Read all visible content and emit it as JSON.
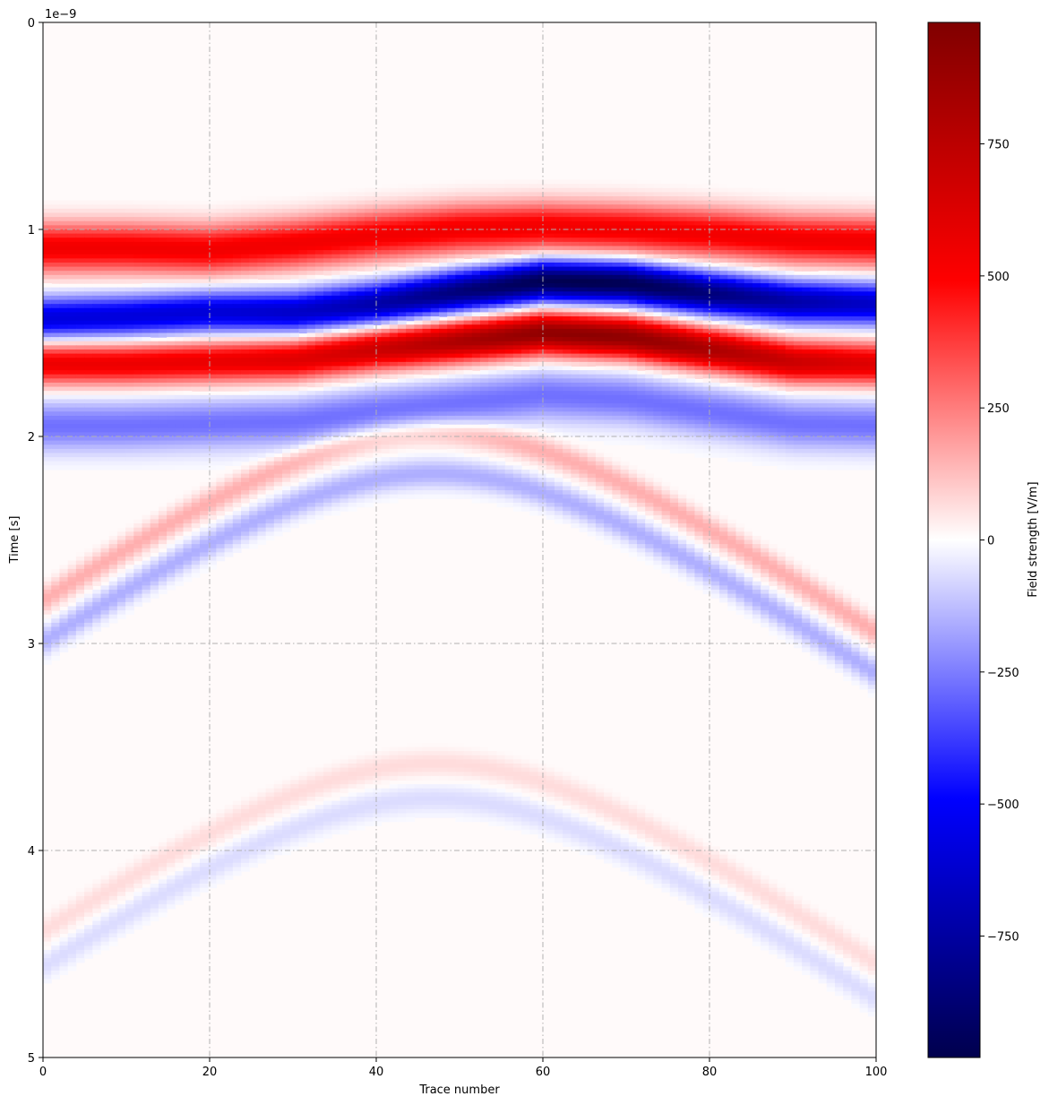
{
  "chart_data": {
    "type": "heatmap",
    "xlabel": "Trace number",
    "ylabel": "Time [s]",
    "y_offset_label": "1e−9",
    "xlim": [
      0,
      100
    ],
    "ylim": [
      0,
      5
    ],
    "y_inverted": true,
    "x_ticks": [
      "0",
      "20",
      "40",
      "60",
      "80",
      "100"
    ],
    "y_ticks": [
      "0",
      "1",
      "2",
      "3",
      "4",
      "5"
    ],
    "grid": true,
    "grid_style": "dash-dot",
    "colormap": "seismic",
    "colorbar": {
      "label": "Field strength [V/m]",
      "range": [
        -980,
        980
      ],
      "ticks": [
        "−750",
        "−500",
        "−250",
        "0",
        "250",
        "500",
        "750"
      ],
      "tick_values": [
        -750,
        -500,
        -250,
        0,
        250,
        500,
        750
      ]
    },
    "direct_wave": {
      "first_red_band_center_time": [
        1.09,
        1.09,
        1.1,
        1.07,
        1.03,
        1.0,
        0.99,
        1.0,
        1.02,
        1.05,
        1.06
      ],
      "blue_band_center_time": [
        1.43,
        1.42,
        1.4,
        1.4,
        1.36,
        1.3,
        1.25,
        1.26,
        1.31,
        1.35,
        1.36
      ],
      "second_red_band_center_time": [
        1.65,
        1.65,
        1.64,
        1.63,
        1.58,
        1.54,
        1.5,
        1.52,
        1.58,
        1.64,
        1.65
      ],
      "x_positions": [
        0,
        10,
        20,
        30,
        40,
        50,
        60,
        70,
        80,
        90,
        100
      ],
      "peak_amplitude": 980
    },
    "hyperbolas": [
      {
        "apex_x": 47,
        "apex_time": 1.98,
        "polarity": "red"
      },
      {
        "apex_x": 47,
        "apex_time": 2.18,
        "polarity": "blue"
      },
      {
        "apex_x": 47,
        "apex_time": 3.58,
        "polarity": "red"
      },
      {
        "apex_x": 47,
        "apex_time": 3.75,
        "polarity": "blue"
      }
    ],
    "colors": {
      "axis": "#000000",
      "grid": "#b0b0b0",
      "background": "#ffffff"
    }
  }
}
